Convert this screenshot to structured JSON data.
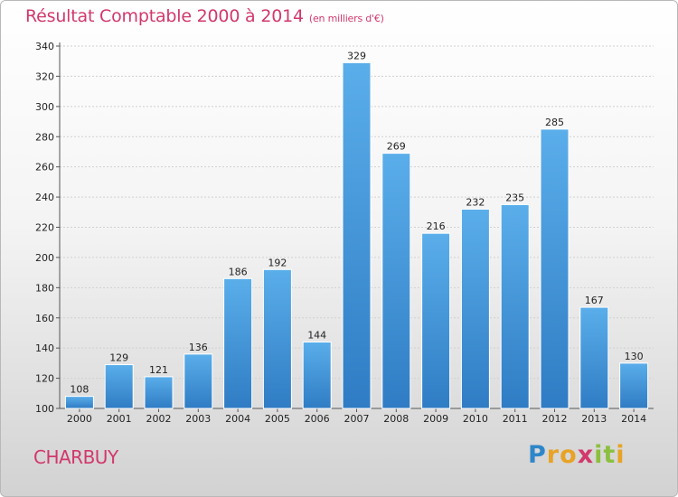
{
  "chart_data": {
    "type": "bar",
    "title": "Résultat Comptable 2000 à 2014",
    "subtitle": "(en milliers d'€)",
    "categories": [
      "2000",
      "2001",
      "2002",
      "2003",
      "2004",
      "2005",
      "2006",
      "2007",
      "2008",
      "2009",
      "2010",
      "2011",
      "2012",
      "2013",
      "2014"
    ],
    "values": [
      108,
      129,
      121,
      136,
      186,
      192,
      144,
      329,
      269,
      216,
      232,
      235,
      285,
      167,
      130
    ],
    "ylim": [
      100,
      340
    ],
    "yticks": [
      100,
      120,
      140,
      160,
      180,
      200,
      220,
      240,
      260,
      280,
      300,
      320,
      340
    ],
    "xlabel": "",
    "ylabel": "",
    "bar_color": "#3f8fd6"
  },
  "place": "CHARBUY",
  "brand": {
    "letters": [
      "P",
      "r",
      "o",
      "x",
      "i",
      "t",
      "i"
    ],
    "colors": [
      "#2e86c9",
      "#e8a325",
      "#e8a325",
      "#d2386b",
      "#8cbf3f",
      "#8cbf3f",
      "#e8a325"
    ]
  }
}
